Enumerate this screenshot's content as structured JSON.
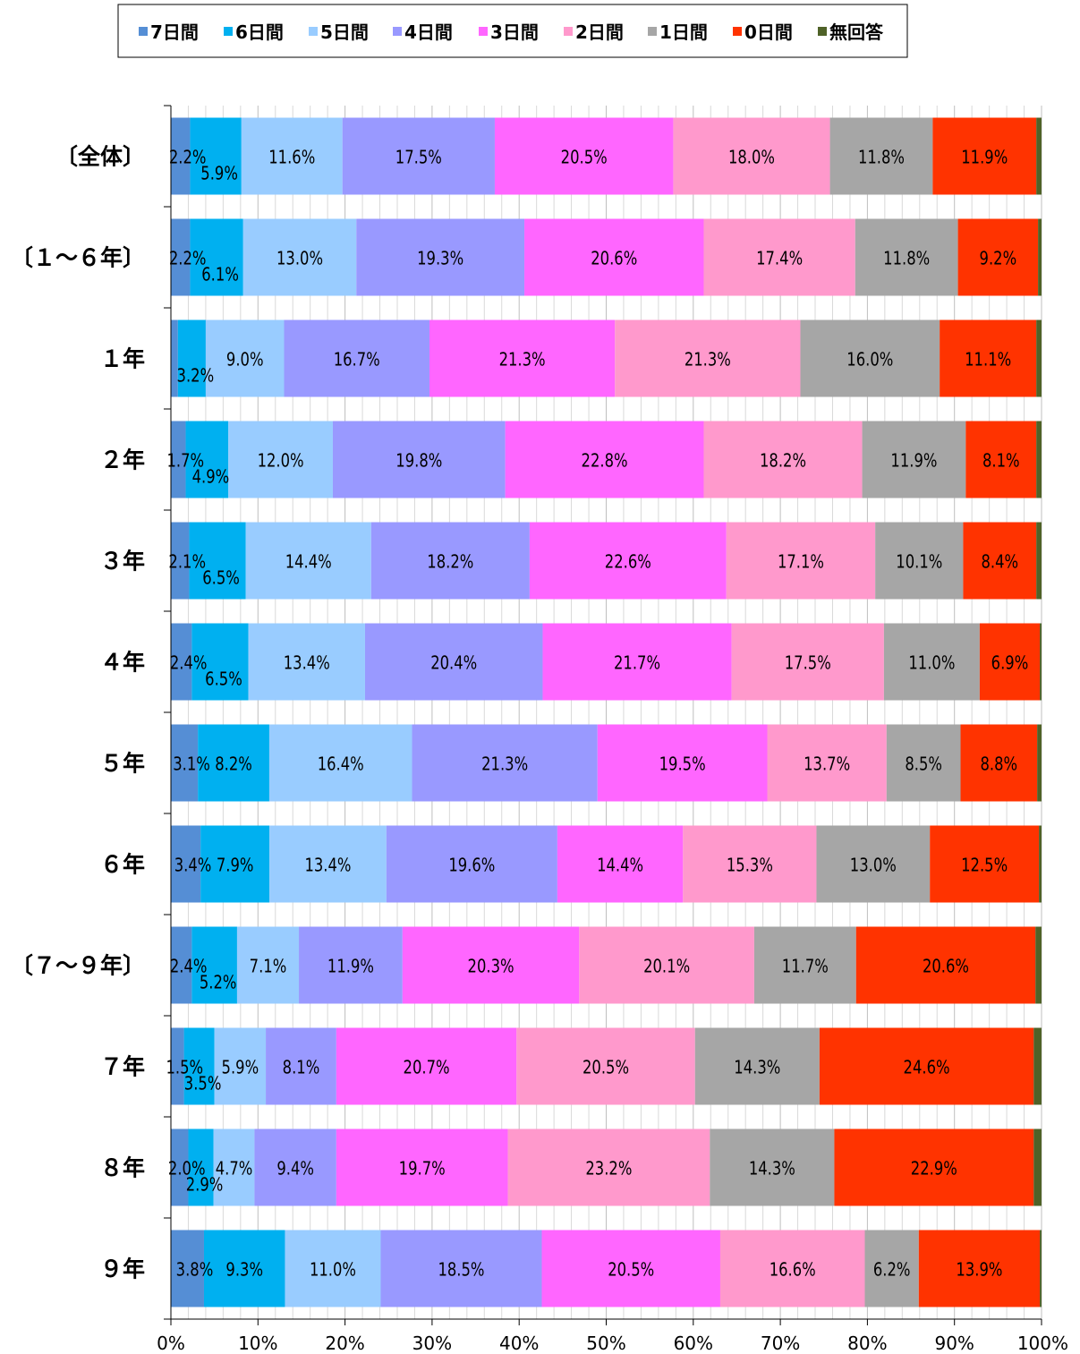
{
  "chart_data": {
    "type": "bar",
    "orientation": "horizontal",
    "stacked": "percent",
    "legend_position": "top",
    "grid": true,
    "xlim": [
      0,
      100
    ],
    "xticks": [
      "0%",
      "10%",
      "20%",
      "30%",
      "40%",
      "50%",
      "60%",
      "70%",
      "80%",
      "90%",
      "100%"
    ],
    "categories": [
      "〔全体〕",
      "〔１～６年〕",
      "１年",
      "２年",
      "３年",
      "４年",
      "５年",
      "６年",
      "〔７～９年〕",
      "７年",
      "８年",
      "９年"
    ],
    "series": [
      {
        "name": "7日間",
        "color": "#558ED5",
        "values": [
          2.2,
          2.2,
          0.8,
          1.7,
          2.1,
          2.4,
          3.1,
          3.4,
          2.4,
          1.5,
          2.0,
          3.8
        ],
        "labels": [
          "2.2%",
          "2.2%",
          "",
          "1.7%",
          "2.1%",
          "2.4%",
          "3.1%",
          "3.4%",
          "2.4%",
          "1.5%",
          "2.0%",
          "3.8%"
        ]
      },
      {
        "name": "6日間",
        "color": "#00B0F0",
        "values": [
          5.9,
          6.1,
          3.2,
          4.9,
          6.5,
          6.5,
          8.2,
          7.9,
          5.2,
          3.5,
          2.9,
          9.3
        ],
        "labels": [
          "5.9%",
          "6.1%",
          "3.2%",
          "4.9%",
          "6.5%",
          "6.5%",
          "8.2%",
          "7.9%",
          "5.2%",
          "3.5%",
          "2.9%",
          "9.3%"
        ]
      },
      {
        "name": "5日間",
        "color": "#99CCFF",
        "values": [
          11.6,
          13.0,
          9.0,
          12.0,
          14.4,
          13.4,
          16.4,
          13.4,
          7.1,
          5.9,
          4.7,
          11.0
        ],
        "labels": [
          "11.6%",
          "13.0%",
          "9.0%",
          "12.0%",
          "14.4%",
          "13.4%",
          "16.4%",
          "13.4%",
          "7.1%",
          "5.9%",
          "4.7%",
          "11.0%"
        ]
      },
      {
        "name": "4日間",
        "color": "#9999FF",
        "values": [
          17.5,
          19.3,
          16.7,
          19.8,
          18.2,
          20.4,
          21.3,
          19.6,
          11.9,
          8.1,
          9.4,
          18.5
        ],
        "labels": [
          "17.5%",
          "19.3%",
          "16.7%",
          "19.8%",
          "18.2%",
          "20.4%",
          "21.3%",
          "19.6%",
          "11.9%",
          "8.1%",
          "9.4%",
          "18.5%"
        ]
      },
      {
        "name": "3日間",
        "color": "#FF66FF",
        "values": [
          20.5,
          20.6,
          21.3,
          22.8,
          22.6,
          21.7,
          19.5,
          14.4,
          20.3,
          20.7,
          19.7,
          20.5
        ],
        "labels": [
          "20.5%",
          "20.6%",
          "21.3%",
          "22.8%",
          "22.6%",
          "21.7%",
          "19.5%",
          "14.4%",
          "20.3%",
          "20.7%",
          "19.7%",
          "20.5%"
        ]
      },
      {
        "name": "2日間",
        "color": "#FF99CC",
        "values": [
          18.0,
          17.4,
          21.3,
          18.2,
          17.1,
          17.5,
          13.7,
          15.3,
          20.1,
          20.5,
          23.2,
          16.6
        ],
        "labels": [
          "18.0%",
          "17.4%",
          "21.3%",
          "18.2%",
          "17.1%",
          "17.5%",
          "13.7%",
          "15.3%",
          "20.1%",
          "20.5%",
          "23.2%",
          "16.6%"
        ]
      },
      {
        "name": "1日間",
        "color": "#A6A6A6",
        "values": [
          11.8,
          11.8,
          16.0,
          11.9,
          10.1,
          11.0,
          8.5,
          13.0,
          11.7,
          14.3,
          14.3,
          6.2
        ],
        "labels": [
          "11.8%",
          "11.8%",
          "16.0%",
          "11.9%",
          "10.1%",
          "11.0%",
          "8.5%",
          "13.0%",
          "11.7%",
          "14.3%",
          "14.3%",
          "6.2%"
        ]
      },
      {
        "name": "0日間",
        "color": "#FF3300",
        "values": [
          11.9,
          9.2,
          11.1,
          8.1,
          8.4,
          6.9,
          8.8,
          12.5,
          20.6,
          24.6,
          22.9,
          13.9
        ],
        "labels": [
          "11.9%",
          "9.2%",
          "11.1%",
          "8.1%",
          "8.4%",
          "6.9%",
          "8.8%",
          "12.5%",
          "20.6%",
          "24.6%",
          "22.9%",
          "13.9%"
        ]
      },
      {
        "name": "無回答",
        "color": "#4F6228",
        "values": [
          0.6,
          0.4,
          0.6,
          0.6,
          0.6,
          0.2,
          0.5,
          0.3,
          0.7,
          0.9,
          0.9,
          0.2
        ],
        "labels": [
          "",
          "",
          "",
          "",
          "",
          "",
          "",
          "",
          "",
          "",
          "",
          ""
        ]
      }
    ]
  }
}
